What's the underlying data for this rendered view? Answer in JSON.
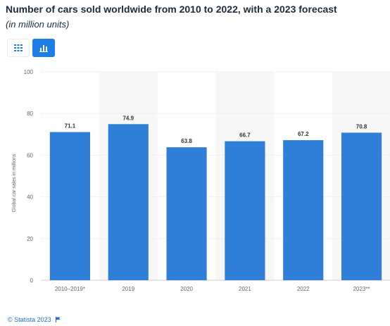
{
  "header": {
    "title": "Number of cars sold worldwide from 2010 to 2022, with a 2023 forecast",
    "subtitle": "(in million units)"
  },
  "view_toggle": {
    "table_icon": "grid-icon",
    "chart_icon": "bar-chart-icon",
    "active": "chart"
  },
  "colors": {
    "bar": "#2f7ed8",
    "active_toggle": "#1e7de6",
    "band": "#f7f7f7",
    "grid": "#e6e6e6"
  },
  "chart_data": {
    "type": "bar",
    "categories": [
      "2010–2019*",
      "2019",
      "2020",
      "2021",
      "2022",
      "2023**"
    ],
    "values": [
      71.1,
      74.9,
      63.8,
      66.7,
      67.2,
      70.8
    ],
    "ylabel": "Global car sales in millions",
    "ylim": [
      0,
      100
    ],
    "yticks": [
      0,
      20,
      40,
      60,
      80,
      100
    ],
    "grid": true,
    "data_labels": true
  },
  "footer": {
    "copyright": "© Statista 2023",
    "flag_icon": "flag-icon"
  }
}
